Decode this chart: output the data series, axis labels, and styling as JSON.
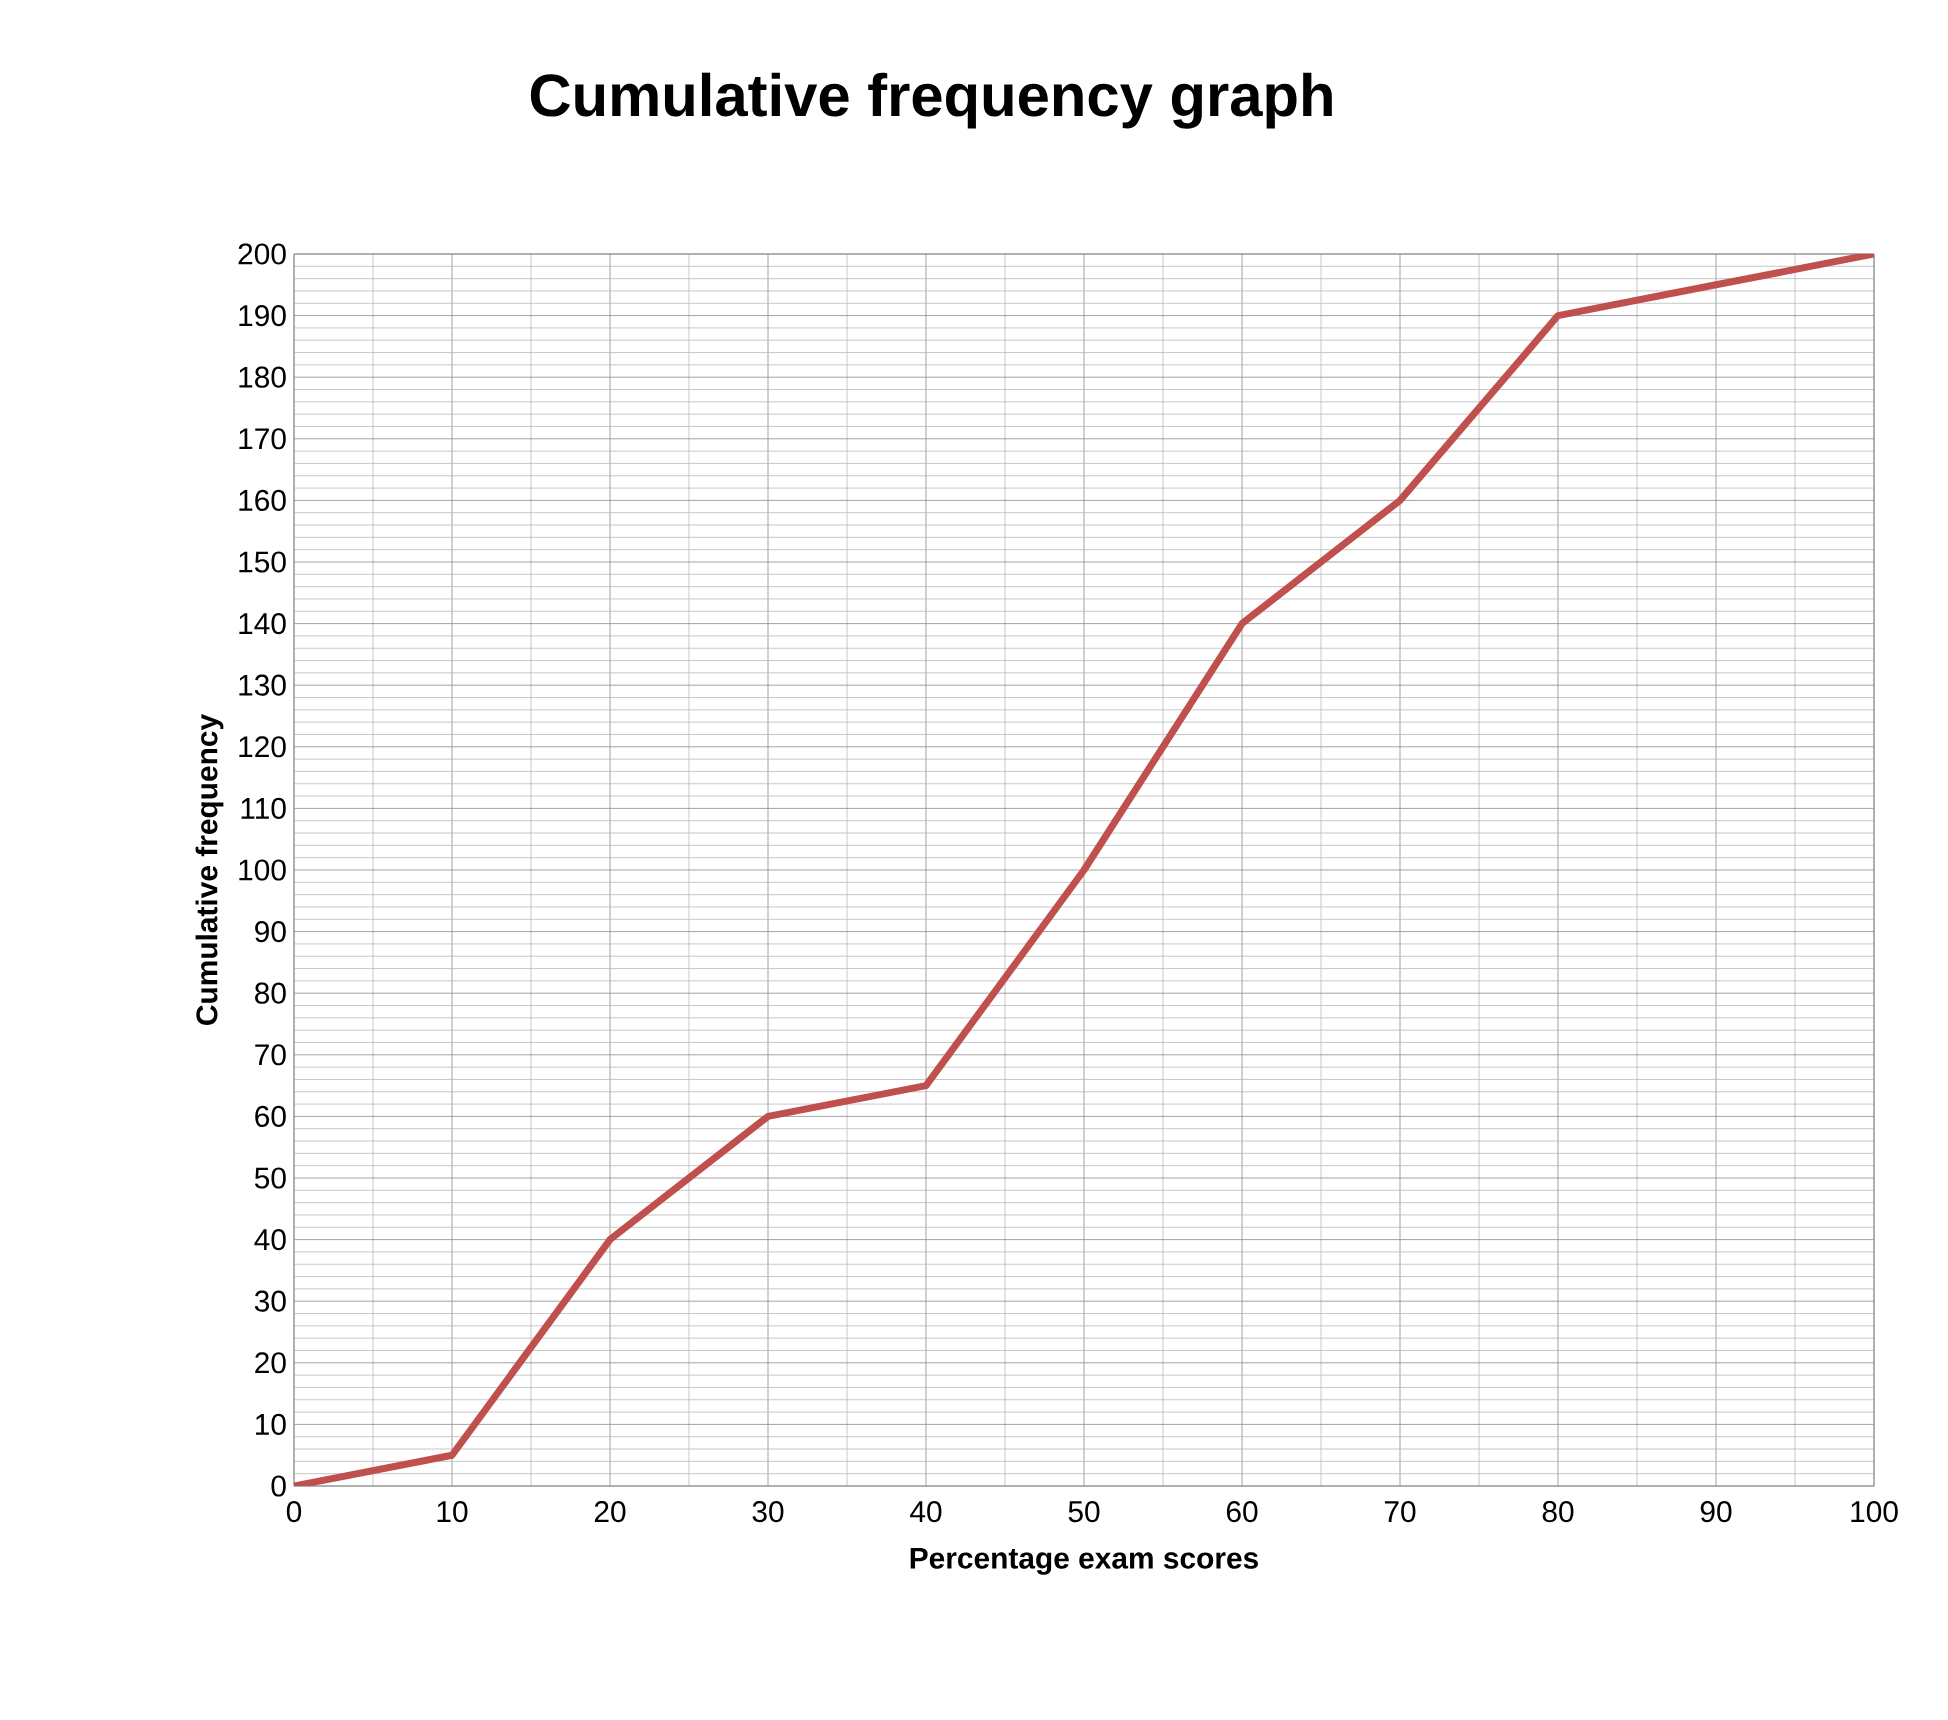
{
  "chart_data": {
    "type": "line",
    "title": "Cumulative frequency graph",
    "xlabel": "Percentage exam scores",
    "ylabel": "Cumulative frequency",
    "x": [
      0,
      10,
      20,
      30,
      40,
      50,
      60,
      70,
      80,
      90,
      100
    ],
    "values": [
      0,
      5,
      40,
      60,
      65,
      100,
      140,
      160,
      190,
      195,
      200
    ],
    "color": "#c0504d",
    "marker": "none",
    "line_style": "solid",
    "xlim": [
      0,
      100
    ],
    "ylim": [
      0,
      200
    ],
    "xticks": [
      0,
      10,
      20,
      30,
      40,
      50,
      60,
      70,
      80,
      90,
      100
    ],
    "yticks": [
      0,
      10,
      20,
      30,
      40,
      50,
      60,
      70,
      80,
      90,
      100,
      110,
      120,
      130,
      140,
      150,
      160,
      170,
      180,
      190,
      200
    ],
    "grid": true
  }
}
